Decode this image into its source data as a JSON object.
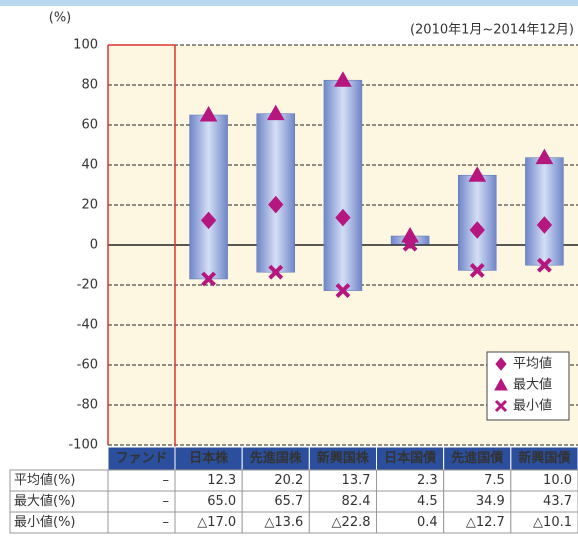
{
  "chart_data": {
    "type": "range_bar",
    "y_unit": "(%)",
    "subtitle": "(2010年1月~2014年12月)",
    "categories": [
      "ファンド",
      "日本株",
      "先進国株",
      "新興国株",
      "日本国債",
      "先進国債",
      "新興国債"
    ],
    "series": [
      {
        "name": "平均値",
        "table_label": "平均値(%)",
        "marker": "diamond",
        "color": "#b5177f",
        "values": [
          null,
          12.3,
          20.2,
          13.7,
          2.3,
          7.5,
          10.0
        ],
        "value_labels": [
          "–",
          "12.3",
          "20.2",
          "13.7",
          "2.3",
          "7.5",
          "10.0"
        ]
      },
      {
        "name": "最大値",
        "table_label": "最大値(%)",
        "marker": "triangle",
        "color": "#b5177f",
        "values": [
          null,
          65.0,
          65.7,
          82.4,
          4.5,
          34.9,
          43.7
        ],
        "value_labels": [
          "–",
          "65.0",
          "65.7",
          "82.4",
          "4.5",
          "34.9",
          "43.7"
        ]
      },
      {
        "name": "最小値",
        "table_label": "最小値(%)",
        "marker": "cross",
        "color": "#b5177f",
        "values": [
          null,
          -17.0,
          -13.6,
          -22.8,
          0.4,
          -12.7,
          -10.1
        ],
        "value_labels": [
          "–",
          "△17.0",
          "△13.6",
          "△22.8",
          "0.4",
          "△12.7",
          "△10.1"
        ]
      }
    ],
    "bar_color": "#8ea4da",
    "ylim": [
      -100,
      100
    ],
    "yticks": [
      100,
      80,
      60,
      40,
      20,
      0,
      -20,
      -40,
      -60,
      -80,
      -100
    ],
    "grid": true,
    "legend": "lower right"
  }
}
